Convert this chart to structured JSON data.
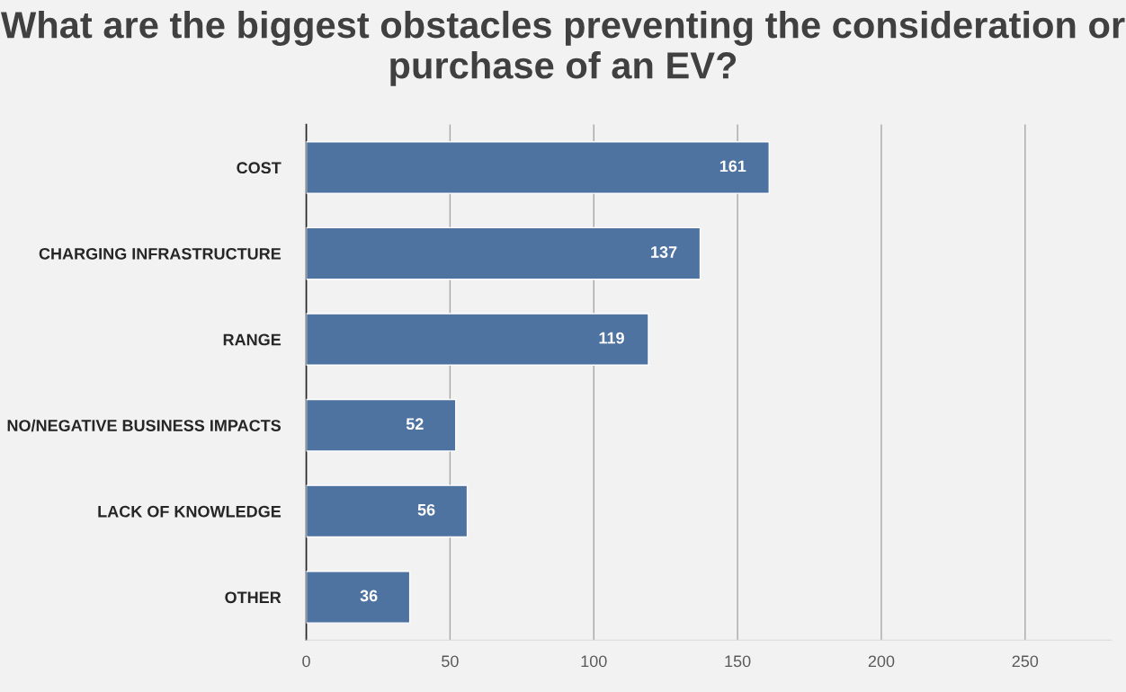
{
  "chart_data": {
    "type": "bar",
    "orientation": "horizontal",
    "title": "What are the biggest obstacles preventing the consideration or purchase of an EV?",
    "categories": [
      "COST",
      "CHARGING INFRASTRUCTURE",
      "RANGE",
      "NO/NEGATIVE BUSINESS IMPACTS",
      "LACK OF KNOWLEDGE",
      "OTHER"
    ],
    "values": [
      161,
      137,
      119,
      52,
      56,
      36
    ],
    "color": "#4f73a1",
    "xlim": [
      0,
      280
    ],
    "xticks": [
      0,
      50,
      100,
      150,
      200,
      250
    ],
    "grid": "x",
    "data_labels": true
  }
}
